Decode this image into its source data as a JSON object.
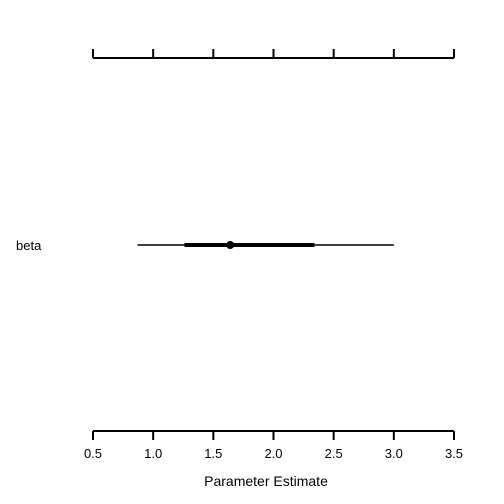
{
  "chart_data": {
    "type": "interval",
    "xlabel": "Parameter Estimate",
    "xlim": [
      0.5,
      3.5
    ],
    "xticks": [
      "0.5",
      "1.0",
      "1.5",
      "2.0",
      "2.5",
      "3.0",
      "3.5"
    ],
    "parameters": [
      {
        "name": "beta",
        "estimate": 1.64,
        "inner_interval": [
          1.26,
          2.34
        ],
        "outer_interval": [
          0.87,
          3.0
        ]
      }
    ],
    "colors": {
      "line": "#000000",
      "background": "#ffffff"
    }
  }
}
